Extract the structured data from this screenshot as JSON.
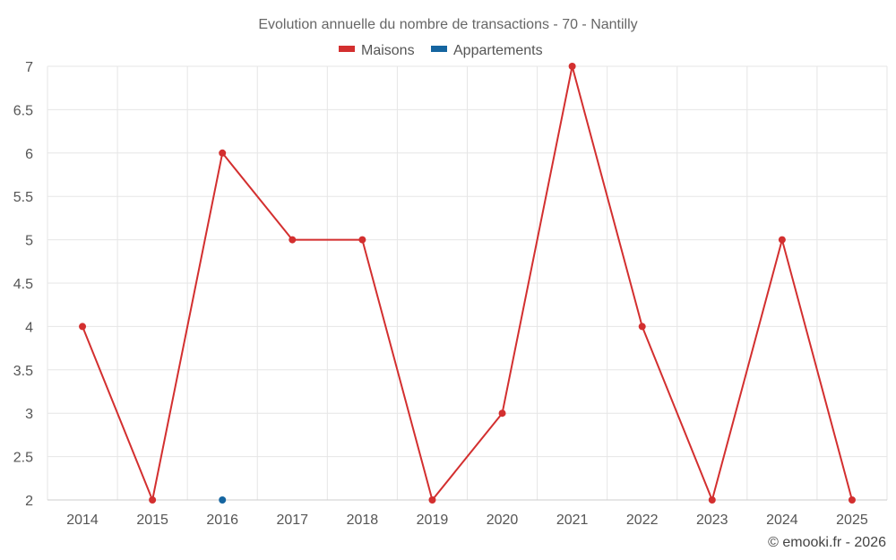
{
  "chart_data": {
    "type": "line",
    "title": "Evolution annuelle du nombre de transactions - 70 - Nantilly",
    "categories": [
      "2014",
      "2015",
      "2016",
      "2017",
      "2018",
      "2019",
      "2020",
      "2021",
      "2022",
      "2023",
      "2024",
      "2025"
    ],
    "series": [
      {
        "name": "Maisons",
        "color": "#d32f2f",
        "values": [
          4,
          2,
          6,
          5,
          5,
          2,
          3,
          7,
          4,
          2,
          5,
          2
        ]
      },
      {
        "name": "Appartements",
        "color": "#1565a0",
        "values": [
          null,
          null,
          2,
          null,
          null,
          null,
          null,
          null,
          null,
          null,
          null,
          null
        ]
      }
    ],
    "ylim": [
      2,
      7
    ],
    "yticks": [
      "2",
      "2.5",
      "3",
      "3.5",
      "4",
      "4.5",
      "5",
      "5.5",
      "6",
      "6.5",
      "7"
    ],
    "xlabel": "",
    "ylabel": "",
    "grid": true,
    "legend": "top-center"
  },
  "credit": "© emooki.fr - 2026"
}
